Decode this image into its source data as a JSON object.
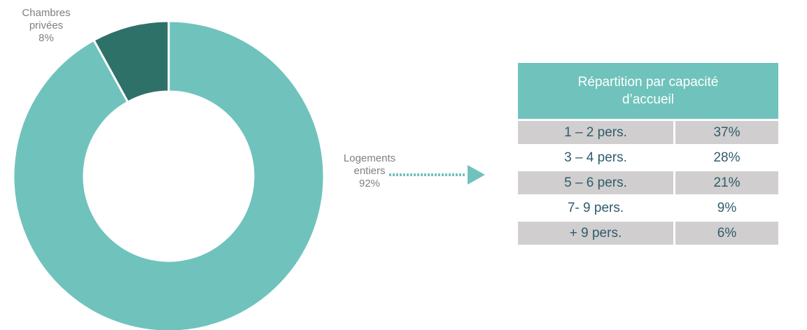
{
  "chart_data": {
    "type": "donut",
    "categories": [
      "Logements entiers",
      "Chambres privées"
    ],
    "values": [
      92,
      8
    ],
    "value_labels": [
      "92%",
      "8%"
    ],
    "colors": [
      "#6fc3bc",
      "#2e7168"
    ]
  },
  "table": {
    "title": "Répartition par capacité d’accueil",
    "rows": [
      [
        "1 – 2 pers.",
        "37%"
      ],
      [
        "3 – 4 pers.",
        "28%"
      ],
      [
        "5 – 6 pers.",
        "21%"
      ],
      [
        "7- 9 pers.",
        "9%"
      ],
      [
        "+ 9 pers.",
        "6%"
      ]
    ]
  }
}
